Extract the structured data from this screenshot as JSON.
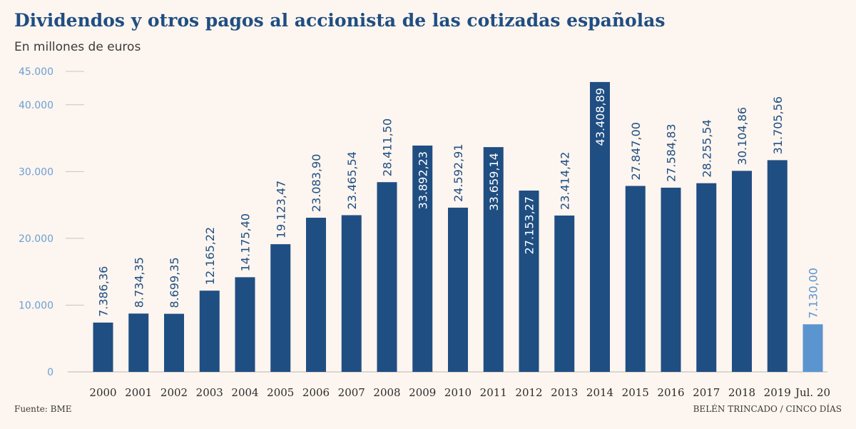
{
  "header": {
    "title": "Dividendos y otros pagos al accionista de las cotizadas españolas",
    "subtitle": "En millones de euros"
  },
  "footer": {
    "source": "Fuente: BME",
    "credit": "BELÉN TRINCADO / CINCO DÍAS"
  },
  "colors": {
    "bar": "#1f4e82",
    "bar_highlight": "#5b95cf",
    "tick_label": "#6a9fd4",
    "axis_label": "#2b2b2b",
    "gridline": "#c9c3bf"
  },
  "chart_data": {
    "type": "bar",
    "title": "Dividendos y otros pagos al accionista de las cotizadas españolas",
    "ylabel": "En millones de euros",
    "xlabel": "",
    "ylim": [
      0,
      45000
    ],
    "yticks": [
      0,
      10000,
      20000,
      30000,
      40000,
      45000
    ],
    "ytick_labels": [
      "0",
      "10.000",
      "20.000",
      "30.000",
      "40.000",
      "45.000"
    ],
    "categories": [
      "2000",
      "2001",
      "2002",
      "2003",
      "2004",
      "2005",
      "2006",
      "2007",
      "2008",
      "2009",
      "2010",
      "2011",
      "2012",
      "2013",
      "2014",
      "2015",
      "2016",
      "2017",
      "2018",
      "2019",
      "Jul. 20"
    ],
    "values": [
      7386.36,
      8734.35,
      8699.35,
      12165.22,
      14175.4,
      19123.47,
      23083.9,
      23465.54,
      28411.5,
      33892.23,
      24592.91,
      33659.14,
      27153.27,
      23414.42,
      43408.89,
      27847.0,
      27584.83,
      28255.54,
      30104.86,
      31705.56,
      7130.0
    ],
    "value_labels": [
      "7.386,36",
      "8.734,35",
      "8.699,35",
      "12.165,22",
      "14.175,40",
      "19.123,47",
      "23.083,90",
      "23.465,54",
      "28.411,50",
      "33.892,23",
      "24.592,91",
      "33.659,14",
      "27.153,27",
      "23.414,42",
      "43.408,89",
      "27.847,00",
      "27.584,83",
      "28.255,54",
      "30.104,86",
      "31.705,56",
      "7.130,00"
    ],
    "labels_inside": [
      false,
      false,
      false,
      false,
      false,
      false,
      false,
      false,
      false,
      true,
      false,
      true,
      true,
      false,
      true,
      false,
      false,
      false,
      false,
      false,
      false
    ],
    "highlight": [
      false,
      false,
      false,
      false,
      false,
      false,
      false,
      false,
      false,
      false,
      false,
      false,
      false,
      false,
      false,
      false,
      false,
      false,
      false,
      false,
      true
    ]
  }
}
